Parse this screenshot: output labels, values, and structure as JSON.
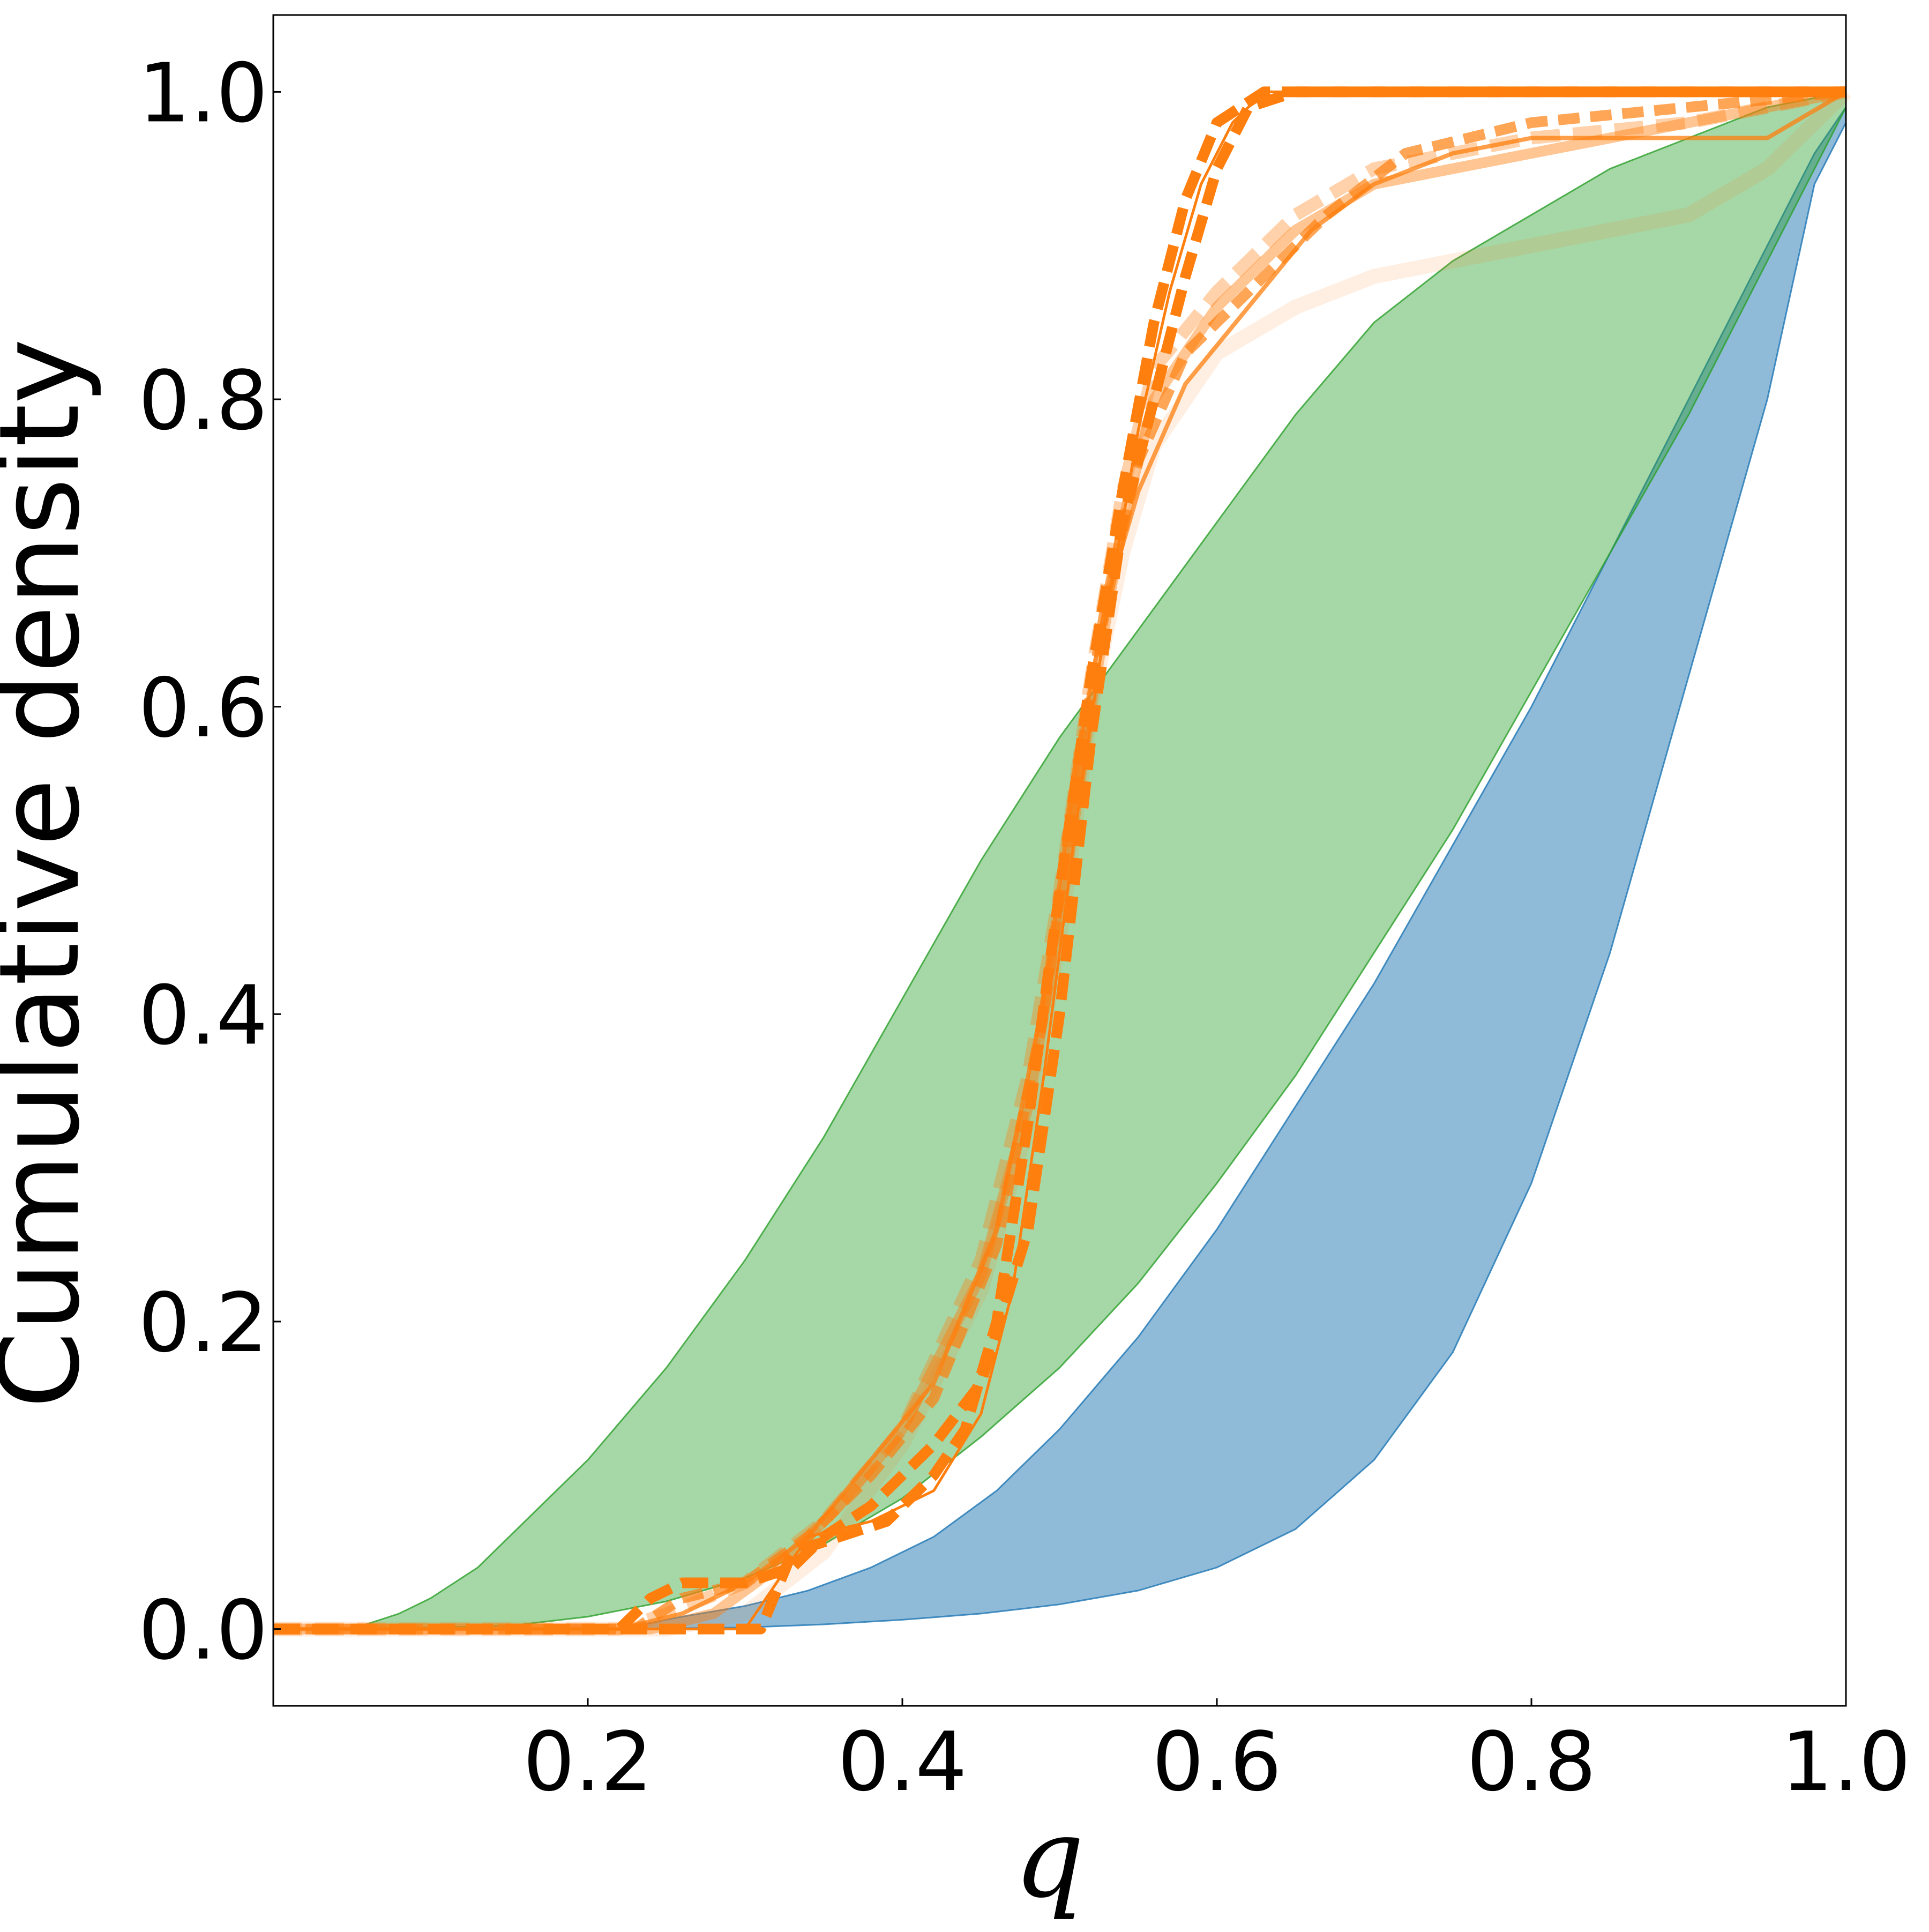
{
  "chart_data": {
    "type": "line",
    "title": "",
    "xlabel": "q",
    "ylabel": "Cumulative density",
    "xlim": [
      0.0,
      1.0
    ],
    "ylim": [
      -0.05,
      1.05
    ],
    "x_ticks": [
      "0.2",
      "0.4",
      "0.6",
      "0.8",
      "1.0"
    ],
    "x_tick_values": [
      0.2,
      0.4,
      0.6,
      0.8,
      1.0
    ],
    "y_ticks": [
      "0.0",
      "0.2",
      "0.4",
      "0.6",
      "0.8",
      "1.0"
    ],
    "y_tick_values": [
      0.0,
      0.2,
      0.4,
      0.6,
      0.8,
      1.0
    ],
    "grid": false,
    "legend": "none",
    "bands": [
      {
        "color": "#1f77b4",
        "fill_opacity": 0.5,
        "upper": [
          [
            0.22,
            0.0
          ],
          [
            0.26,
            0.008
          ],
          [
            0.3,
            0.015
          ],
          [
            0.34,
            0.025
          ],
          [
            0.38,
            0.04
          ],
          [
            0.42,
            0.06
          ],
          [
            0.46,
            0.09
          ],
          [
            0.5,
            0.13
          ],
          [
            0.55,
            0.19
          ],
          [
            0.6,
            0.26
          ],
          [
            0.65,
            0.34
          ],
          [
            0.7,
            0.42
          ],
          [
            0.75,
            0.51
          ],
          [
            0.8,
            0.6
          ],
          [
            0.85,
            0.7
          ],
          [
            0.9,
            0.8
          ],
          [
            0.95,
            0.9
          ],
          [
            0.98,
            0.96
          ],
          [
            1.0,
            0.99
          ]
        ],
        "lower": [
          [
            0.22,
            0.0
          ],
          [
            0.3,
            0.001
          ],
          [
            0.35,
            0.003
          ],
          [
            0.4,
            0.006
          ],
          [
            0.45,
            0.01
          ],
          [
            0.5,
            0.016
          ],
          [
            0.55,
            0.025
          ],
          [
            0.6,
            0.04
          ],
          [
            0.65,
            0.065
          ],
          [
            0.7,
            0.11
          ],
          [
            0.75,
            0.18
          ],
          [
            0.8,
            0.29
          ],
          [
            0.85,
            0.44
          ],
          [
            0.9,
            0.62
          ],
          [
            0.95,
            0.8
          ],
          [
            0.98,
            0.94
          ],
          [
            1.0,
            0.98
          ]
        ]
      },
      {
        "color": "#2ca02c",
        "fill_opacity": 0.42,
        "upper": [
          [
            0.05,
            0.0
          ],
          [
            0.08,
            0.01
          ],
          [
            0.1,
            0.02
          ],
          [
            0.13,
            0.04
          ],
          [
            0.16,
            0.07
          ],
          [
            0.2,
            0.11
          ],
          [
            0.25,
            0.17
          ],
          [
            0.3,
            0.24
          ],
          [
            0.35,
            0.32
          ],
          [
            0.4,
            0.41
          ],
          [
            0.45,
            0.5
          ],
          [
            0.5,
            0.58
          ],
          [
            0.55,
            0.65
          ],
          [
            0.6,
            0.72
          ],
          [
            0.65,
            0.79
          ],
          [
            0.7,
            0.85
          ],
          [
            0.75,
            0.89
          ],
          [
            0.8,
            0.92
          ],
          [
            0.85,
            0.95
          ],
          [
            0.9,
            0.97
          ],
          [
            0.95,
            0.99
          ],
          [
            1.0,
            1.0
          ]
        ],
        "lower": [
          [
            0.05,
            0.0
          ],
          [
            0.15,
            0.002
          ],
          [
            0.2,
            0.008
          ],
          [
            0.25,
            0.018
          ],
          [
            0.3,
            0.033
          ],
          [
            0.35,
            0.055
          ],
          [
            0.4,
            0.085
          ],
          [
            0.45,
            0.125
          ],
          [
            0.5,
            0.17
          ],
          [
            0.55,
            0.225
          ],
          [
            0.6,
            0.29
          ],
          [
            0.65,
            0.36
          ],
          [
            0.7,
            0.44
          ],
          [
            0.75,
            0.52
          ],
          [
            0.8,
            0.61
          ],
          [
            0.85,
            0.7
          ],
          [
            0.9,
            0.79
          ],
          [
            0.95,
            0.89
          ],
          [
            1.0,
            0.99
          ]
        ]
      }
    ],
    "series": [
      {
        "color": "#ff7f0e",
        "opacity": 0.12,
        "width": 28,
        "dash": "none",
        "points": [
          [
            0.0,
            0.0
          ],
          [
            0.25,
            0.0
          ],
          [
            0.3,
            0.01
          ],
          [
            0.35,
            0.05
          ],
          [
            0.4,
            0.12
          ],
          [
            0.45,
            0.22
          ],
          [
            0.48,
            0.33
          ],
          [
            0.5,
            0.45
          ],
          [
            0.52,
            0.6
          ],
          [
            0.54,
            0.7
          ],
          [
            0.56,
            0.77
          ],
          [
            0.6,
            0.83
          ],
          [
            0.65,
            0.86
          ],
          [
            0.7,
            0.88
          ],
          [
            0.75,
            0.89
          ],
          [
            0.8,
            0.9
          ],
          [
            0.85,
            0.91
          ],
          [
            0.9,
            0.92
          ],
          [
            0.95,
            0.95
          ],
          [
            1.0,
            1.0
          ]
        ]
      },
      {
        "color": "#ff7f0e",
        "opacity": 0.35,
        "width": 24,
        "dash": "54 24",
        "points": [
          [
            0.0,
            0.0
          ],
          [
            0.22,
            0.0
          ],
          [
            0.25,
            0.01
          ],
          [
            0.3,
            0.03
          ],
          [
            0.35,
            0.07
          ],
          [
            0.4,
            0.13
          ],
          [
            0.45,
            0.24
          ],
          [
            0.48,
            0.36
          ],
          [
            0.5,
            0.48
          ],
          [
            0.52,
            0.62
          ],
          [
            0.54,
            0.74
          ],
          [
            0.56,
            0.82
          ],
          [
            0.6,
            0.87
          ],
          [
            0.65,
            0.92
          ],
          [
            0.7,
            0.95
          ],
          [
            0.8,
            0.97
          ],
          [
            0.9,
            0.98
          ],
          [
            1.0,
            1.0
          ]
        ]
      },
      {
        "color": "#ff7f0e",
        "opacity": 0.45,
        "width": 20,
        "dash": "none",
        "points": [
          [
            0.0,
            0.0
          ],
          [
            0.24,
            0.0
          ],
          [
            0.28,
            0.01
          ],
          [
            0.32,
            0.04
          ],
          [
            0.36,
            0.08
          ],
          [
            0.4,
            0.13
          ],
          [
            0.45,
            0.23
          ],
          [
            0.48,
            0.34
          ],
          [
            0.5,
            0.46
          ],
          [
            0.52,
            0.6
          ],
          [
            0.54,
            0.72
          ],
          [
            0.56,
            0.8
          ],
          [
            0.6,
            0.86
          ],
          [
            0.65,
            0.91
          ],
          [
            0.7,
            0.94
          ],
          [
            0.8,
            0.96
          ],
          [
            0.9,
            0.98
          ],
          [
            1.0,
            1.0
          ]
        ]
      },
      {
        "color": "#ff7f0e",
        "opacity": 0.7,
        "width": 20,
        "dash": "40 20",
        "points": [
          [
            0.0,
            0.0
          ],
          [
            0.23,
            0.0
          ],
          [
            0.26,
            0.02
          ],
          [
            0.3,
            0.03
          ],
          [
            0.34,
            0.06
          ],
          [
            0.38,
            0.1
          ],
          [
            0.42,
            0.15
          ],
          [
            0.46,
            0.25
          ],
          [
            0.49,
            0.4
          ],
          [
            0.51,
            0.55
          ],
          [
            0.53,
            0.67
          ],
          [
            0.55,
            0.76
          ],
          [
            0.58,
            0.83
          ],
          [
            0.62,
            0.87
          ],
          [
            0.67,
            0.92
          ],
          [
            0.72,
            0.96
          ],
          [
            0.8,
            0.98
          ],
          [
            0.9,
            0.99
          ],
          [
            1.0,
            1.0
          ]
        ]
      },
      {
        "color": "#ff7f0e",
        "opacity": 0.75,
        "width": 8,
        "dash": "none",
        "points": [
          [
            0.0,
            0.0
          ],
          [
            0.22,
            0.0
          ],
          [
            0.26,
            0.01
          ],
          [
            0.3,
            0.03
          ],
          [
            0.34,
            0.06
          ],
          [
            0.38,
            0.11
          ],
          [
            0.42,
            0.16
          ],
          [
            0.46,
            0.26
          ],
          [
            0.49,
            0.41
          ],
          [
            0.51,
            0.56
          ],
          [
            0.53,
            0.67
          ],
          [
            0.55,
            0.74
          ],
          [
            0.58,
            0.81
          ],
          [
            0.62,
            0.86
          ],
          [
            0.66,
            0.91
          ],
          [
            0.7,
            0.94
          ],
          [
            0.75,
            0.96
          ],
          [
            0.8,
            0.97
          ],
          [
            0.9,
            0.97
          ],
          [
            0.95,
            0.97
          ],
          [
            1.0,
            1.0
          ]
        ]
      },
      {
        "color": "#ff7f0e",
        "opacity": 1.0,
        "width": 20,
        "dash": "50 22",
        "points": [
          [
            0.0,
            0.0
          ],
          [
            0.22,
            0.0
          ],
          [
            0.24,
            0.02
          ],
          [
            0.26,
            0.03
          ],
          [
            0.3,
            0.03
          ],
          [
            0.33,
            0.04
          ],
          [
            0.35,
            0.06
          ],
          [
            0.38,
            0.08
          ],
          [
            0.42,
            0.12
          ],
          [
            0.45,
            0.16
          ],
          [
            0.48,
            0.26
          ],
          [
            0.5,
            0.4
          ],
          [
            0.52,
            0.58
          ],
          [
            0.54,
            0.72
          ],
          [
            0.56,
            0.8
          ],
          [
            0.58,
            0.88
          ],
          [
            0.6,
            0.95
          ],
          [
            0.62,
            0.99
          ],
          [
            0.65,
            1.0
          ],
          [
            1.0,
            1.0
          ]
        ]
      },
      {
        "color": "#ff7f0e",
        "opacity": 1.0,
        "width": 5,
        "dash": "none",
        "points": [
          [
            0.0,
            0.0
          ],
          [
            0.3,
            0.0
          ],
          [
            0.32,
            0.03
          ],
          [
            0.34,
            0.06
          ],
          [
            0.38,
            0.07
          ],
          [
            0.42,
            0.09
          ],
          [
            0.45,
            0.14
          ],
          [
            0.47,
            0.22
          ],
          [
            0.49,
            0.36
          ],
          [
            0.51,
            0.52
          ],
          [
            0.53,
            0.66
          ],
          [
            0.55,
            0.78
          ],
          [
            0.57,
            0.87
          ],
          [
            0.59,
            0.94
          ],
          [
            0.61,
            0.98
          ],
          [
            0.63,
            1.0
          ],
          [
            1.0,
            1.0
          ]
        ]
      },
      {
        "color": "#ff7f0e",
        "opacity": 1.0,
        "width": 20,
        "dash": "50 22",
        "points": [
          [
            0.0,
            0.0
          ],
          [
            0.31,
            0.0
          ],
          [
            0.33,
            0.05
          ],
          [
            0.36,
            0.06
          ],
          [
            0.39,
            0.07
          ],
          [
            0.42,
            0.1
          ],
          [
            0.44,
            0.13
          ],
          [
            0.46,
            0.2
          ],
          [
            0.48,
            0.33
          ],
          [
            0.5,
            0.48
          ],
          [
            0.52,
            0.62
          ],
          [
            0.54,
            0.74
          ],
          [
            0.56,
            0.85
          ],
          [
            0.58,
            0.93
          ],
          [
            0.6,
            0.98
          ],
          [
            0.63,
            1.0
          ],
          [
            1.0,
            1.0
          ]
        ]
      }
    ]
  }
}
